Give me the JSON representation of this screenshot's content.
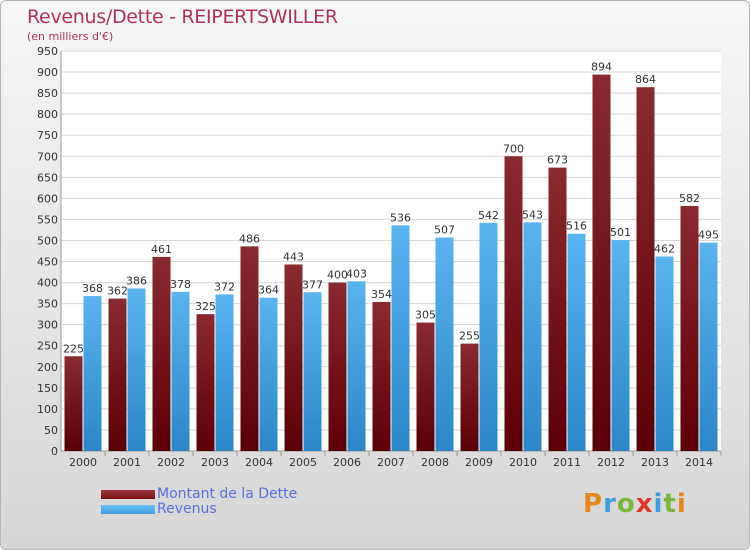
{
  "chart_data": {
    "type": "bar",
    "title": "Revenus/Dette - REIPERTSWILLER",
    "subtitle": "(en milliers d'€)",
    "categories": [
      "2000",
      "2001",
      "2002",
      "2003",
      "2004",
      "2005",
      "2006",
      "2007",
      "2008",
      "2009",
      "2010",
      "2011",
      "2012",
      "2013",
      "2014"
    ],
    "series": [
      {
        "name": "Montant de la Dette",
        "color": "#7a0f14",
        "values": [
          225,
          362,
          461,
          325,
          486,
          443,
          400,
          354,
          305,
          255,
          700,
          673,
          894,
          864,
          582
        ]
      },
      {
        "name": "Revenus",
        "color": "#3a9ee0",
        "values": [
          368,
          386,
          378,
          372,
          364,
          377,
          403,
          536,
          507,
          542,
          543,
          516,
          501,
          462,
          495
        ]
      }
    ],
    "ylim": [
      0,
      950
    ],
    "yticks": [
      0,
      50,
      100,
      150,
      200,
      250,
      300,
      350,
      400,
      450,
      500,
      550,
      600,
      650,
      700,
      750,
      800,
      850,
      900,
      950
    ],
    "grid": true,
    "legend_position": "bottom-left"
  },
  "logo": {
    "letters": [
      "P",
      "r",
      "o",
      "x",
      "i",
      "t",
      "i"
    ],
    "colors": [
      "#e8861c",
      "#3a9ee0",
      "#7bb53a",
      "#e03a2c",
      "#3a9ee0",
      "#7bb53a",
      "#e8861c"
    ]
  }
}
